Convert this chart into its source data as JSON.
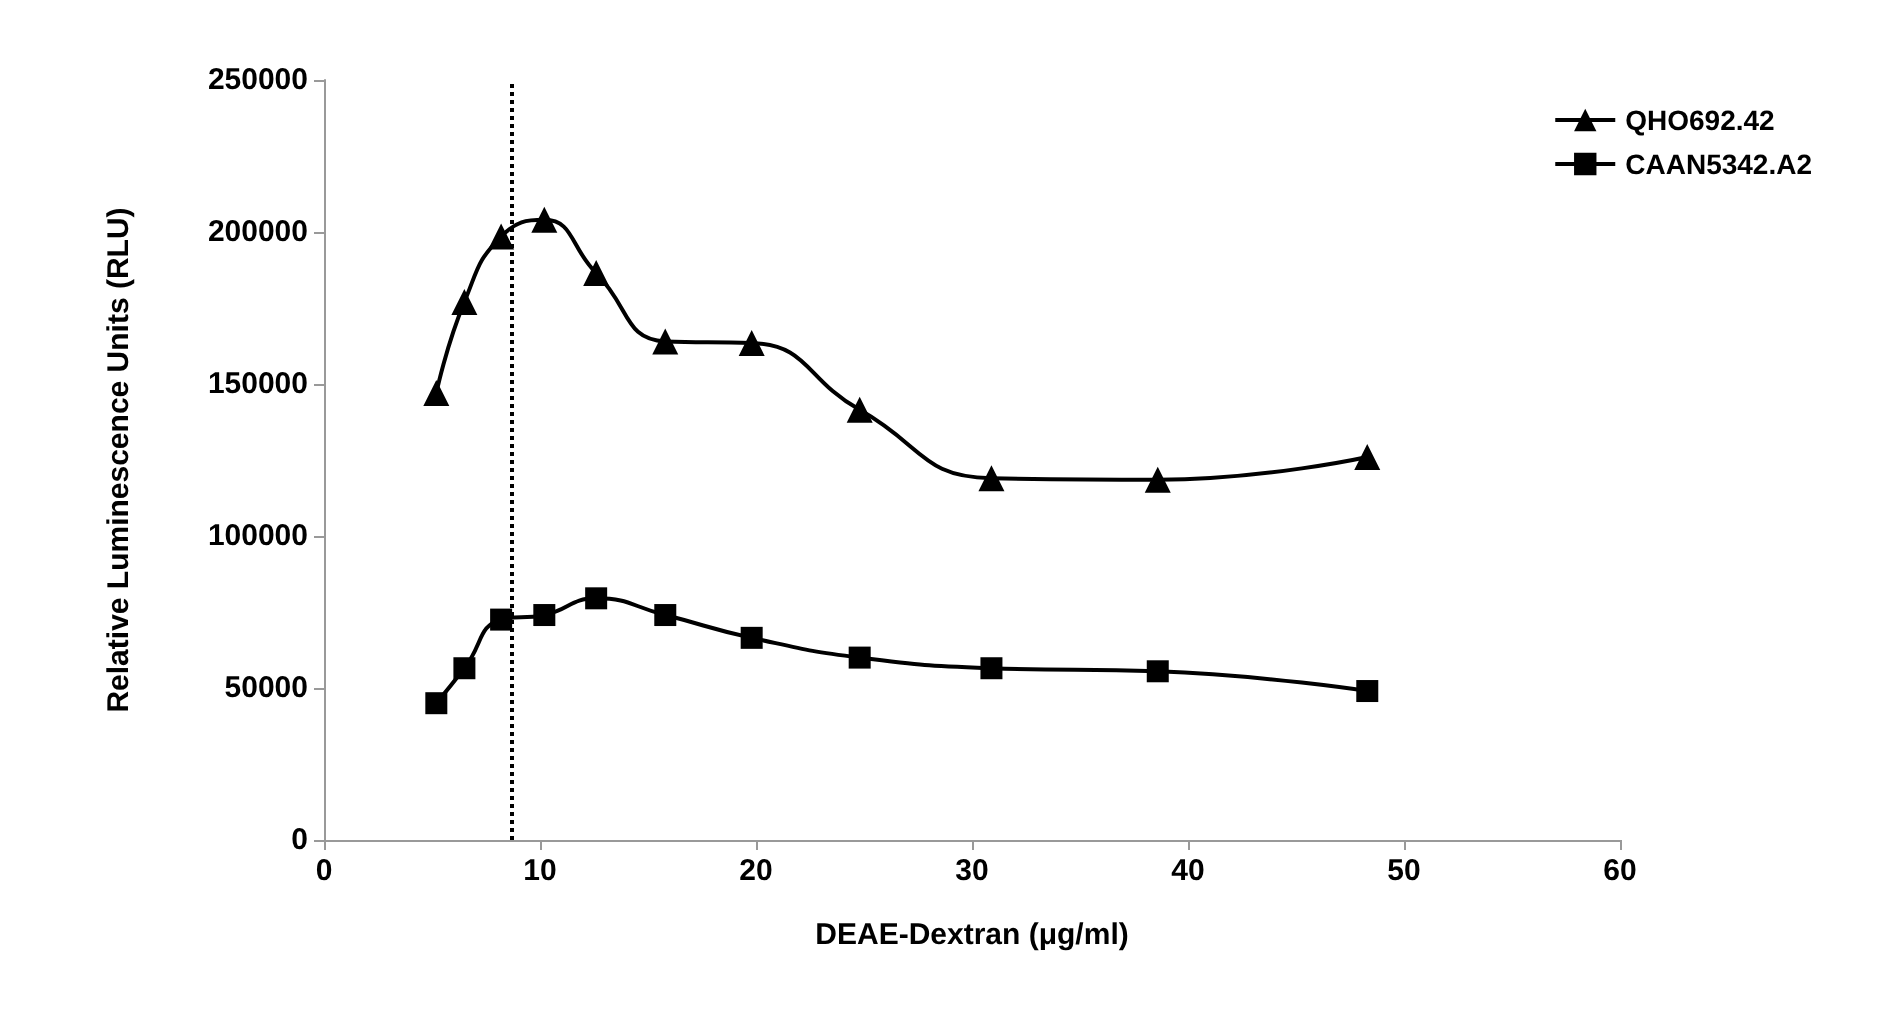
{
  "chart_data": {
    "type": "line",
    "xlabel": "DEAE-Dextran (μg/ml)",
    "ylabel": "Relative Luminescence Units (RLU)",
    "x": [
      5.2,
      6.5,
      8.2,
      10.2,
      12.6,
      15.8,
      19.8,
      24.8,
      30.9,
      38.6,
      48.3
    ],
    "series": [
      {
        "name": "QHO692.42",
        "color": "#000000",
        "marker": "triangle",
        "values": [
          147000,
          177000,
          198500,
          204000,
          186500,
          164000,
          163500,
          141500,
          119000,
          118500,
          126000
        ]
      },
      {
        "name": "CAAN5342.A2",
        "color": "#000000",
        "marker": "square",
        "values": [
          45000,
          56500,
          72500,
          74000,
          79500,
          74000,
          66500,
          60000,
          56500,
          55500,
          49000
        ]
      }
    ],
    "xlim": [
      0,
      60
    ],
    "xticks": [
      0,
      10,
      20,
      30,
      40,
      50,
      60
    ],
    "ylim": [
      0,
      250000
    ],
    "yticks": [
      0,
      50000,
      100000,
      150000,
      200000,
      250000
    ],
    "ref_lines": [
      {
        "axis": "x",
        "value": 8.7,
        "line_style": "dotted",
        "color": "#000000"
      }
    ],
    "grid": false,
    "legend": "top right",
    "line_style": "solid"
  }
}
